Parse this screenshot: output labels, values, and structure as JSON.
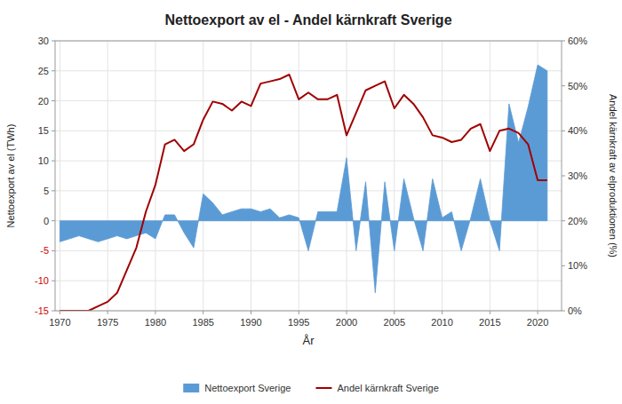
{
  "chart_data": {
    "type": "line",
    "title": "Nettoexport av el - Andel kärnkraft Sverige",
    "xlabel": "År",
    "ylabel": "Nettoexport av el (TWh)",
    "y2label": "Andel kärnkraft av elproduktionen (%)",
    "x": [
      1970,
      1971,
      1972,
      1973,
      1974,
      1975,
      1976,
      1977,
      1978,
      1979,
      1980,
      1981,
      1982,
      1983,
      1984,
      1985,
      1986,
      1987,
      1988,
      1989,
      1990,
      1991,
      1992,
      1993,
      1994,
      1995,
      1996,
      1997,
      1998,
      1999,
      2000,
      2001,
      2002,
      2003,
      2004,
      2005,
      2006,
      2007,
      2008,
      2009,
      2010,
      2011,
      2012,
      2013,
      2014,
      2015,
      2016,
      2017,
      2018,
      2019,
      2020,
      2021
    ],
    "series": [
      {
        "name": "Nettoexport Sverige",
        "type": "area",
        "color": "#5b9bd5",
        "values": [
          -3.5,
          -3.0,
          -2.5,
          -3.0,
          -3.5,
          -3.0,
          -2.5,
          -3.0,
          -2.5,
          -2.0,
          -3.0,
          1.0,
          1.0,
          -2.0,
          -4.5,
          4.5,
          3.0,
          1.0,
          1.5,
          2.0,
          2.0,
          1.5,
          2.0,
          0.5,
          1.0,
          0.5,
          -5.0,
          1.5,
          1.5,
          1.5,
          10.5,
          -5.0,
          6.5,
          -12.0,
          6.5,
          -5.0,
          7.0,
          0.5,
          -5.0,
          7.0,
          0.5,
          1.5,
          -5.0,
          0.5,
          7.0,
          0.0,
          -5.0,
          19.5,
          13.0,
          19.0,
          26.0,
          25.0
        ]
      },
      {
        "name": "Andel kärnkraft Sverige",
        "type": "line",
        "color": "#a00000",
        "axis": "y2",
        "values": [
          0.0,
          0.0,
          0.0,
          0.0,
          0.01,
          0.02,
          0.04,
          0.09,
          0.14,
          0.22,
          0.28,
          0.37,
          0.38,
          0.355,
          0.37,
          0.425,
          0.465,
          0.46,
          0.445,
          0.465,
          0.455,
          0.505,
          0.51,
          0.515,
          0.525,
          0.47,
          0.485,
          0.47,
          0.47,
          0.48,
          0.39,
          0.44,
          0.49,
          0.5,
          0.51,
          0.45,
          0.48,
          0.46,
          0.43,
          0.39,
          0.385,
          0.375,
          0.38,
          0.405,
          0.415,
          0.355,
          0.4,
          0.405,
          0.395,
          0.37,
          0.29,
          0.29
        ]
      }
    ],
    "xlim": [
      1969.5,
      2022.5
    ],
    "xticks": [
      1970,
      1975,
      1980,
      1985,
      1990,
      1995,
      2000,
      2005,
      2010,
      2015,
      2020
    ],
    "ylim": [
      -15,
      30
    ],
    "yticks": [
      -15,
      -10,
      -5,
      0,
      5,
      10,
      15,
      20,
      25,
      30
    ],
    "y2lim": [
      0.0,
      0.6
    ],
    "y2ticks": [
      {
        "value": 0.0,
        "label": "0%"
      },
      {
        "value": 0.1,
        "label": "10%"
      },
      {
        "value": 0.2,
        "label": "20%"
      },
      {
        "value": 0.3,
        "label": "30%"
      },
      {
        "value": 0.4,
        "label": "40%"
      },
      {
        "value": 0.5,
        "label": "50%"
      },
      {
        "value": 0.6,
        "label": "60%"
      }
    ],
    "grid": true,
    "legend": "bottom"
  }
}
